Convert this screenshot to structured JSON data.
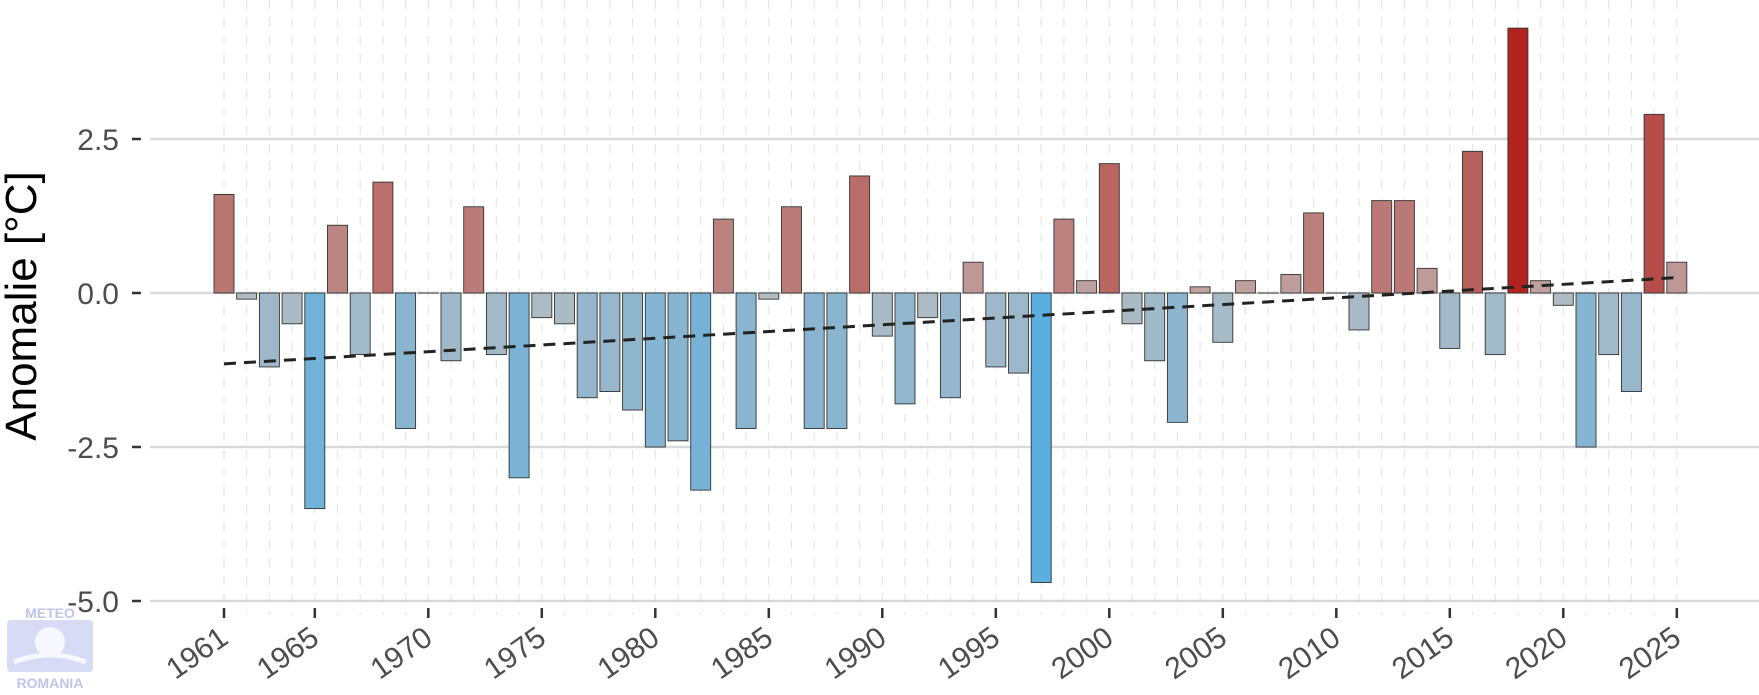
{
  "chart_data": {
    "type": "bar",
    "title": "",
    "xlabel": "",
    "ylabel": "Anomalie [°C]",
    "ylim": [
      -5.0,
      4.5
    ],
    "yticks": [
      {
        "value": -5.0,
        "label": "-5.0"
      },
      {
        "value": -2.5,
        "label": "-2.5"
      },
      {
        "value": 0.0,
        "label": "0.0"
      },
      {
        "value": 2.5,
        "label": "2.5"
      }
    ],
    "xticks": [
      "1961",
      "1965",
      "1970",
      "1975",
      "1980",
      "1985",
      "1990",
      "1995",
      "2000",
      "2005",
      "2010",
      "2015",
      "2020",
      "2025"
    ],
    "x": [
      1961,
      1962,
      1963,
      1964,
      1965,
      1966,
      1967,
      1968,
      1969,
      1970,
      1971,
      1972,
      1973,
      1974,
      1975,
      1976,
      1977,
      1978,
      1979,
      1980,
      1981,
      1982,
      1983,
      1984,
      1985,
      1986,
      1987,
      1988,
      1989,
      1990,
      1991,
      1992,
      1993,
      1994,
      1995,
      1996,
      1997,
      1998,
      1999,
      2000,
      2001,
      2002,
      2003,
      2004,
      2005,
      2006,
      2007,
      2008,
      2009,
      2010,
      2011,
      2012,
      2013,
      2014,
      2015,
      2016,
      2017,
      2018,
      2019,
      2020,
      2021,
      2022,
      2023,
      2024,
      2025
    ],
    "values": [
      1.6,
      -0.1,
      -1.2,
      -0.5,
      -3.5,
      1.1,
      -1.0,
      1.8,
      -2.2,
      0.0,
      -1.1,
      1.4,
      -1.0,
      -3.0,
      -0.4,
      -0.5,
      -1.7,
      -1.6,
      -1.9,
      -2.5,
      -2.4,
      -3.2,
      1.2,
      -2.2,
      -0.1,
      1.4,
      -2.2,
      -2.2,
      1.9,
      -0.7,
      -1.8,
      -0.4,
      -1.7,
      0.5,
      -1.2,
      -1.3,
      -4.7,
      1.2,
      0.2,
      2.1,
      -0.5,
      -1.1,
      -2.1,
      0.1,
      -0.8,
      0.2,
      0.0,
      0.3,
      1.3,
      0.0,
      -0.6,
      1.5,
      1.5,
      0.4,
      -0.9,
      2.3,
      -1.0,
      4.3,
      0.2,
      -0.2,
      -2.5,
      -1.0,
      -1.6,
      2.9,
      0.5
    ],
    "trend": {
      "style": "dashed",
      "start": {
        "x": 1961,
        "y": -1.15
      },
      "end": {
        "x": 2025,
        "y": 0.25
      }
    },
    "grid": {
      "horizontal_major": true,
      "vertical_dashed": true
    },
    "legend": "none",
    "colors": {
      "warm_max": "#b2221e",
      "warm_min": "#bfa7a5",
      "cool_max": "#5aaee0",
      "cool_min": "#b5bcc2",
      "grid_major": "#d9d9d9",
      "grid_vertical": "#e6e6e6",
      "trend_line": "#222222"
    }
  },
  "watermark": {
    "top_text": "METEO",
    "bottom_text": "ROMANIA"
  }
}
